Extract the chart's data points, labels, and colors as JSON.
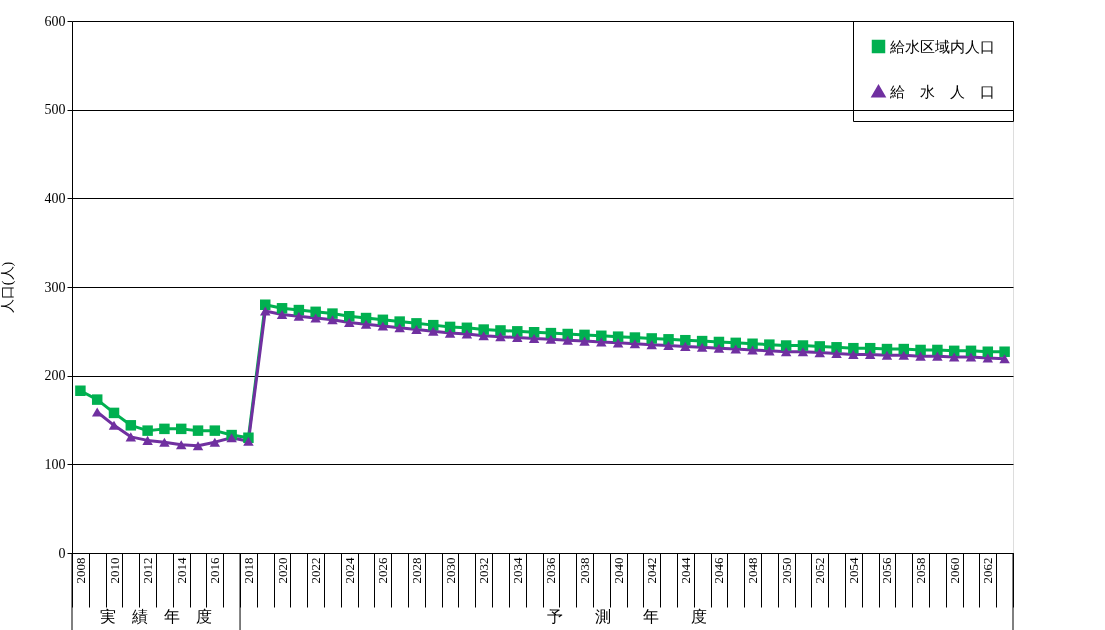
{
  "chart_data": {
    "type": "line",
    "ylabel": "人口(人)",
    "categories": [
      "2008",
      null,
      "2010",
      null,
      "2012",
      null,
      "2014",
      null,
      "2016",
      null,
      "2018",
      null,
      "2020",
      null,
      "2022",
      null,
      "2024",
      null,
      "2026",
      null,
      "2028",
      null,
      "2030",
      null,
      "2032",
      null,
      "2034",
      null,
      "2036",
      null,
      "2038",
      null,
      "2040",
      null,
      "2042",
      null,
      "2044",
      null,
      "2046",
      null,
      "2048",
      null,
      "2050",
      null,
      "2052",
      null,
      "2054",
      null,
      "2056",
      null,
      "2058",
      null,
      "2060",
      null,
      "2062",
      null
    ],
    "series": [
      {
        "name": "給水区域内人口",
        "color": "#00b050",
        "marker": "square",
        "values": [
          183,
          173,
          158,
          144,
          138,
          140,
          140,
          138,
          138,
          133,
          130,
          280,
          276,
          274,
          272,
          270,
          267,
          265,
          263,
          261,
          259,
          257,
          255,
          254,
          252,
          251,
          250,
          249,
          248,
          247,
          246,
          245,
          244,
          243,
          242,
          241,
          240,
          239,
          238,
          237,
          236,
          235,
          234,
          234,
          233,
          232,
          231,
          231,
          230,
          230,
          229,
          229,
          228,
          228,
          227,
          227
        ]
      },
      {
        "name": "給　水　人　口",
        "color": "#7030a0",
        "marker": "triangle",
        "values": [
          null,
          159,
          144,
          131,
          127,
          125,
          122,
          121,
          125,
          130,
          126,
          273,
          269,
          267,
          265,
          263,
          260,
          258,
          256,
          254,
          252,
          250,
          248,
          247,
          245,
          244,
          243,
          242,
          241,
          240,
          239,
          238,
          237,
          236,
          235,
          234,
          233,
          232,
          231,
          230,
          229,
          228,
          227,
          227,
          226,
          225,
          224,
          224,
          223,
          223,
          222,
          222,
          221,
          221,
          220,
          219
        ]
      }
    ],
    "ylim": [
      0,
      600
    ],
    "yticks": [
      0,
      100,
      200,
      300,
      400,
      500,
      600
    ],
    "grid": "y",
    "legend": "top right",
    "annotations": [
      "実　績　年　度",
      "予　　測　　年　　度"
    ]
  }
}
